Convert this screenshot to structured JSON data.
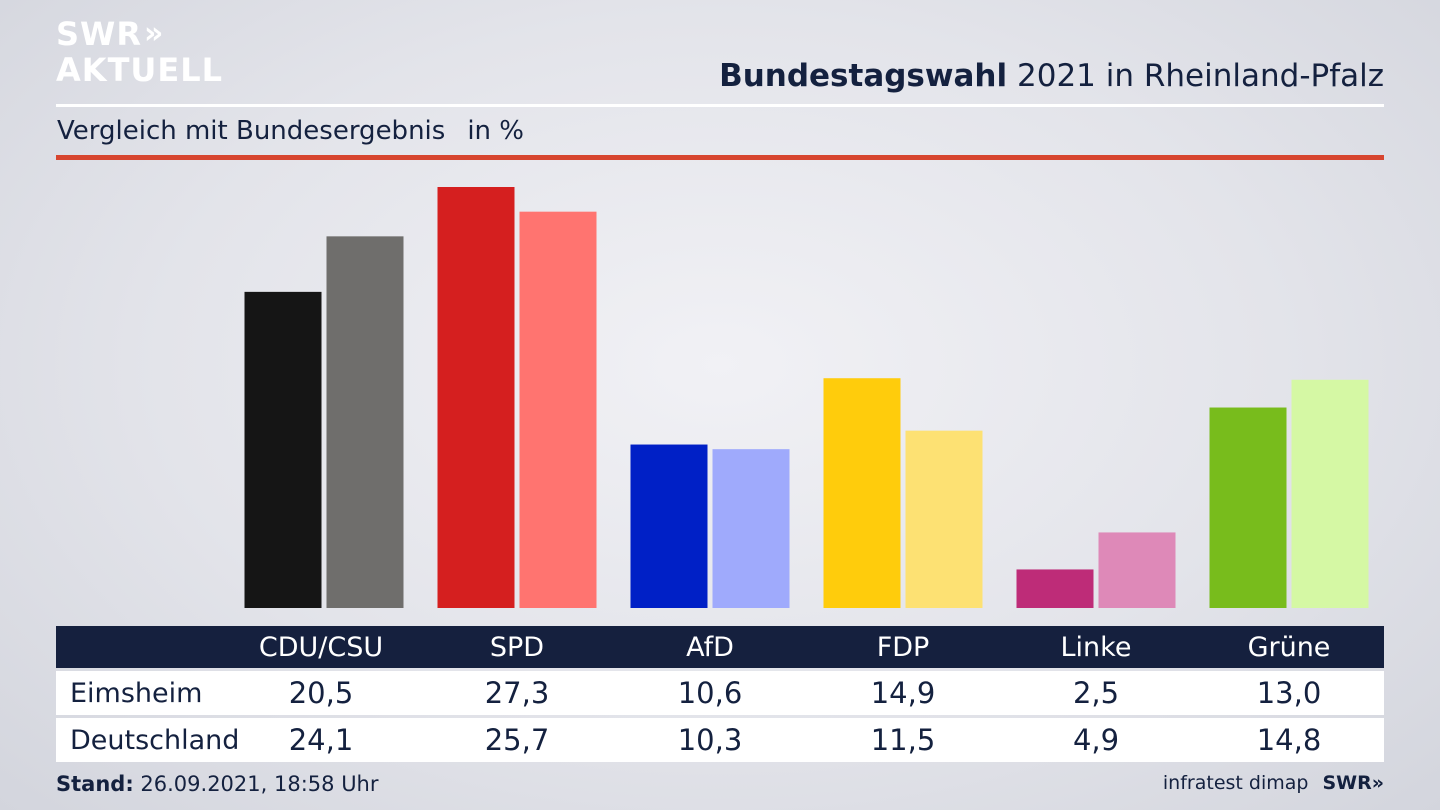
{
  "brand": {
    "line1": "SWR",
    "line2": "AKTUELL",
    "chevrons": "»"
  },
  "header": {
    "title_bold": "Bundestagswahl",
    "title_rest": "2021 in Rheinland-Pfalz"
  },
  "subheader": {
    "text": "Vergleich mit Bundesergebnis",
    "unit": "in %"
  },
  "colors": {
    "navy": "#15203e",
    "accent_rule": "#d7452f"
  },
  "chart_data": {
    "type": "bar",
    "categories": [
      "CDU/CSU",
      "SPD",
      "AfD",
      "FDP",
      "Linke",
      "Grüne"
    ],
    "series": [
      {
        "name": "Eimsheim",
        "values": [
          20.5,
          27.3,
          10.6,
          14.9,
          2.5,
          13.0
        ],
        "colors": [
          "#151515",
          "#d51f1f",
          "#0020c6",
          "#ffcc0c",
          "#be2c78",
          "#78bc1c"
        ]
      },
      {
        "name": "Deutschland",
        "values": [
          24.1,
          25.7,
          10.3,
          11.5,
          4.9,
          14.8
        ],
        "colors": [
          "#6f6e6c",
          "#ff7470",
          "#9faafc",
          "#fde173",
          "#de89b8",
          "#d5f8a4"
        ]
      }
    ],
    "title": "Bundestagswahl 2021 in Rheinland-Pfalz",
    "subtitle": "Vergleich mit Bundesergebnis",
    "ylabel": "in %",
    "ylim": [
      0,
      27.3
    ],
    "grid": false
  },
  "table": {
    "rows": [
      {
        "label": "Eimsheim",
        "values": [
          "20,5",
          "27,3",
          "10,6",
          "14,9",
          "2,5",
          "13,0"
        ]
      },
      {
        "label": "Deutschland",
        "values": [
          "24,1",
          "25,7",
          "10,3",
          "11,5",
          "4,9",
          "14,8"
        ]
      }
    ]
  },
  "footer": {
    "stand_label": "Stand:",
    "stand_value": "26.09.2021, 18:58 Uhr",
    "source": "infratest dimap",
    "brand": "SWR»"
  }
}
